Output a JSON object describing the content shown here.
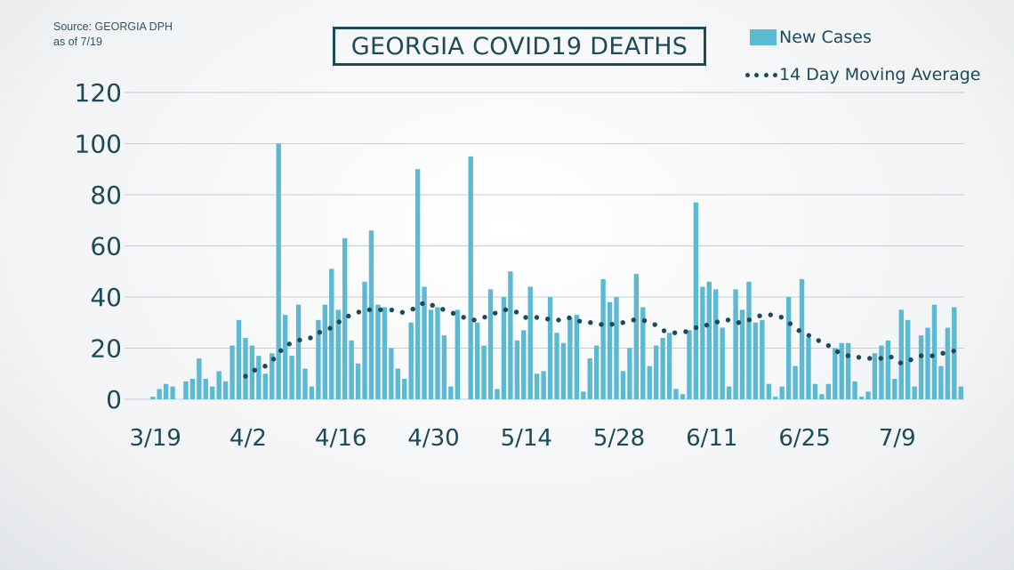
{
  "source": {
    "line1": "Source: GEORGIA DPH",
    "line2": "as of 7/19"
  },
  "legend": {
    "bars": "New Cases",
    "line": "14 Day Moving Average"
  },
  "colors": {
    "bar": "#5bb9d3",
    "line_dots": "#1d4a57",
    "text": "#1d4a57",
    "grid": "#c9ced1"
  },
  "chart_data": {
    "type": "bar",
    "title": "GEORGIA COVID19 DEATHS",
    "xlabel": "",
    "ylabel": "",
    "ylim": [
      0,
      120
    ],
    "yticks": [
      0,
      20,
      40,
      60,
      80,
      100,
      120
    ],
    "grid": true,
    "legend_position": "top-right",
    "x_tick_labels": [
      "3/19",
      "4/2",
      "4/16",
      "4/30",
      "5/14",
      "5/28",
      "6/11",
      "6/25",
      "7/9"
    ],
    "x": [
      "3/19",
      "3/20",
      "3/21",
      "3/22",
      "3/23",
      "3/24",
      "3/25",
      "3/26",
      "3/27",
      "3/28",
      "3/29",
      "3/30",
      "3/31",
      "4/1",
      "4/2",
      "4/3",
      "4/4",
      "4/5",
      "4/6",
      "4/7",
      "4/8",
      "4/9",
      "4/10",
      "4/11",
      "4/12",
      "4/13",
      "4/14",
      "4/15",
      "4/16",
      "4/17",
      "4/18",
      "4/19",
      "4/20",
      "4/21",
      "4/22",
      "4/23",
      "4/24",
      "4/25",
      "4/26",
      "4/27",
      "4/28",
      "4/29",
      "4/30",
      "5/1",
      "5/2",
      "5/3",
      "5/4",
      "5/5",
      "5/6",
      "5/7",
      "5/8",
      "5/9",
      "5/10",
      "5/11",
      "5/12",
      "5/13",
      "5/14",
      "5/15",
      "5/16",
      "5/17",
      "5/18",
      "5/19",
      "5/20",
      "5/21",
      "5/22",
      "5/23",
      "5/24",
      "5/25",
      "5/26",
      "5/27",
      "5/28",
      "5/29",
      "5/30",
      "5/31",
      "6/1",
      "6/2",
      "6/3",
      "6/4",
      "6/5",
      "6/6",
      "6/7",
      "6/8",
      "6/9",
      "6/10",
      "6/11",
      "6/12",
      "6/13",
      "6/14",
      "6/15",
      "6/16",
      "6/17",
      "6/18",
      "6/19",
      "6/20",
      "6/21",
      "6/22",
      "6/23",
      "6/24",
      "6/25",
      "6/26",
      "6/27",
      "6/28",
      "6/29",
      "6/30",
      "7/1",
      "7/2",
      "7/3",
      "7/4",
      "7/5",
      "7/6",
      "7/7",
      "7/8",
      "7/9",
      "7/10",
      "7/11",
      "7/12",
      "7/13",
      "7/14",
      "7/15",
      "7/16",
      "7/17",
      "7/18",
      "7/19"
    ],
    "series": [
      {
        "name": "New Cases",
        "type": "bar",
        "values": [
          1,
          4,
          6,
          5,
          0,
          7,
          8,
          16,
          8,
          5,
          11,
          7,
          21,
          31,
          24,
          21,
          17,
          10,
          18,
          100,
          33,
          17,
          37,
          12,
          5,
          31,
          37,
          51,
          35,
          63,
          23,
          14,
          46,
          66,
          37,
          36,
          20,
          12,
          8,
          30,
          90,
          44,
          35,
          36,
          25,
          5,
          35,
          0,
          95,
          30,
          21,
          43,
          4,
          40,
          50,
          23,
          27,
          44,
          10,
          11,
          40,
          26,
          22,
          32,
          33,
          3,
          16,
          21,
          47,
          38,
          40,
          11,
          20,
          49,
          36,
          13,
          21,
          24,
          26,
          4,
          2,
          27,
          77,
          44,
          46,
          43,
          28,
          5,
          43,
          35,
          46,
          30,
          31,
          6,
          1,
          5,
          40,
          13,
          47,
          24,
          6,
          2,
          6,
          20,
          22,
          22,
          7,
          1,
          3,
          18,
          21,
          23,
          8,
          35,
          31,
          5,
          25,
          28,
          37,
          13,
          28,
          36,
          5
        ]
      },
      {
        "name": "14 Day Moving Average",
        "type": "dotted-line",
        "values": [
          null,
          null,
          null,
          null,
          null,
          null,
          null,
          null,
          null,
          null,
          null,
          null,
          null,
          null,
          9,
          11,
          12,
          13,
          15,
          18,
          21,
          22,
          23,
          24,
          24,
          26,
          27,
          28,
          30,
          32,
          33,
          34,
          35,
          35,
          35,
          35,
          35,
          34,
          34,
          35,
          36,
          38,
          37,
          36,
          35,
          34,
          33,
          32,
          31,
          31,
          32,
          33,
          34,
          35,
          35,
          34,
          32,
          32,
          32,
          32,
          31,
          31,
          31,
          32,
          31,
          30,
          30,
          30,
          29,
          29,
          30,
          30,
          31,
          31,
          31,
          30,
          29,
          27,
          26,
          26,
          26,
          27,
          28,
          29,
          29,
          30,
          31,
          31,
          30,
          30,
          31,
          32,
          33,
          33,
          33,
          32,
          30,
          28,
          26,
          25,
          24,
          22,
          21,
          19,
          18,
          17,
          17,
          16,
          16,
          16,
          16,
          17,
          16,
          14,
          15,
          16,
          17,
          17,
          17,
          18,
          18,
          19,
          21
        ]
      }
    ]
  }
}
